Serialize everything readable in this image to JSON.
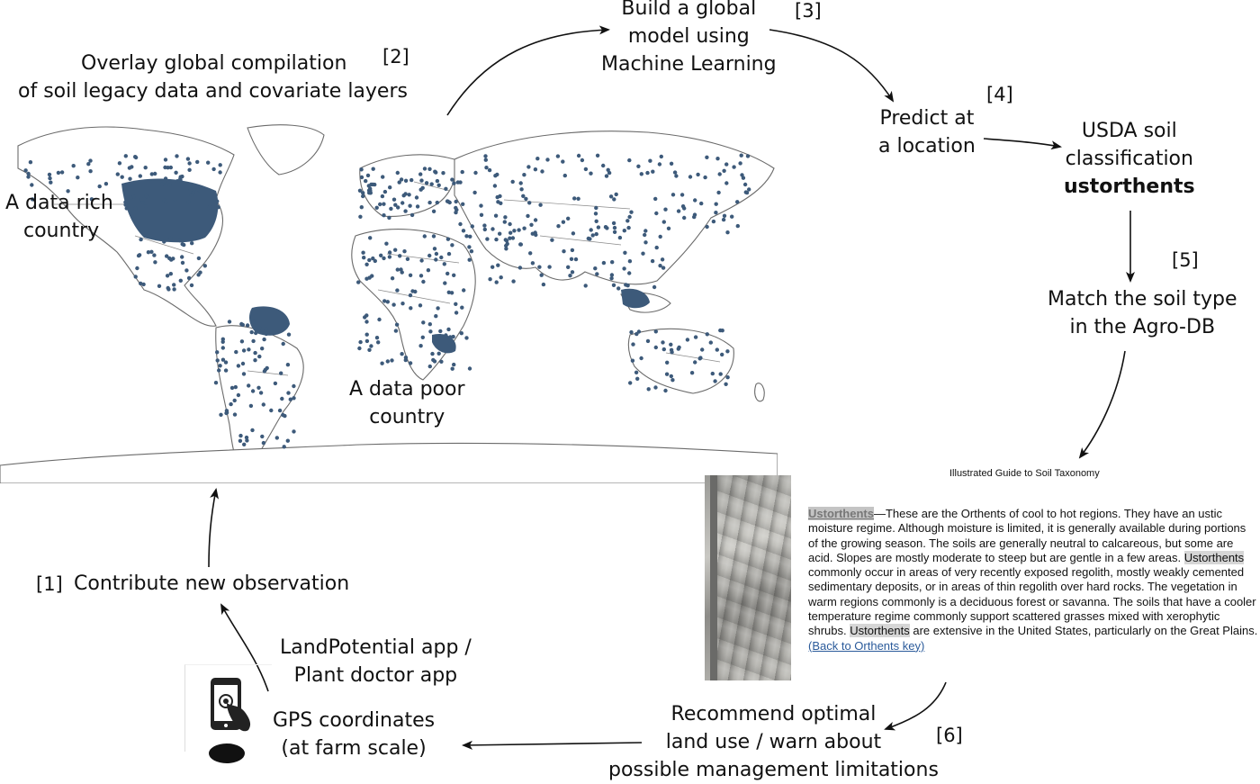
{
  "steps": {
    "s1": "[1]",
    "s2": "[2]",
    "s3": "[3]",
    "s4": "[4]",
    "s5": "[5]",
    "s6": "[6]"
  },
  "overlay": {
    "line1": "Overlay global compilation",
    "line2": "of soil legacy data and covariate layers"
  },
  "build": {
    "line1": "Build a global",
    "line2": "model using",
    "line3": "Machine Learning"
  },
  "predict": {
    "line1": "Predict at",
    "line2": "a location"
  },
  "usda": {
    "line1": "USDA soil",
    "line2": "classification",
    "line3": "ustorthents"
  },
  "match": {
    "line1": "Match the soil type",
    "line2": "in the Agro-DB"
  },
  "recommend": {
    "line1": "Recommend optimal",
    "line2": "land use / warn about",
    "line3": "possible management limitations"
  },
  "gps": {
    "line1": "GPS coordinates",
    "line2": "(at farm scale)"
  },
  "app": {
    "line1": "LandPotential app /",
    "line2": "Plant doctor app"
  },
  "contribute": "Contribute new observation",
  "map_labels": {
    "rich1": "A data rich",
    "rich2": "country",
    "poor1": "A data poor",
    "poor2": "country"
  },
  "colors": {
    "points": "#3d5a7a",
    "land_line": "#6b6b6b",
    "arrow": "#111111",
    "highlight": "#d6d6d6",
    "link": "#2a5a9a"
  },
  "icons": [
    "smartphone-touch-icon",
    "soil-profile-photo"
  ],
  "guide": {
    "title": "Illustrated Guide to Soil Taxonomy",
    "term": "Ustorthents",
    "p1": "—These are the Orthents of cool to hot regions. They have an ustic moisture regime. Although moisture is limited, it is generally available during portions of the growing season. The soils are generally neutral to calcareous, but some are acid. Slopes are mostly moderate to steep but are gentle in a few areas. ",
    "term2": "Ustorthents",
    "p2": " commonly occur in areas of very recently exposed regolith, mostly weakly cemented sedimentary deposits, or in areas of thin regolith over hard rocks. The vegetation in warm regions commonly is a deciduous forest or savanna. The soils that have a cooler temperature regime commonly support scattered grasses mixed with xerophytic shrubs. ",
    "term3": "Ustorthents",
    "p3": " are extensive in the United States, particularly on the Great Plains. ",
    "link": "(Back to Orthents key)"
  }
}
